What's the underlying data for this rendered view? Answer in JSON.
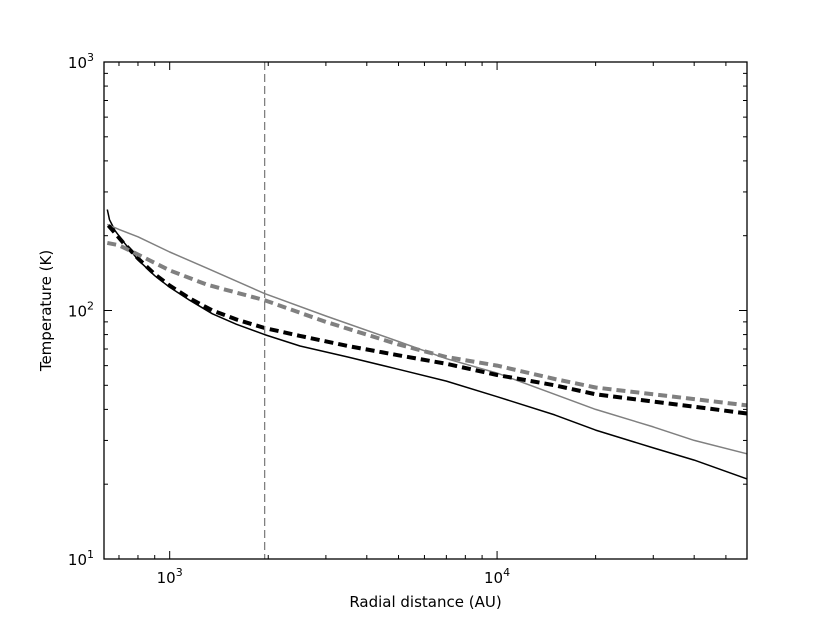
{
  "chart_data": {
    "type": "line",
    "title": "",
    "xlabel": "Radial distance (AU)",
    "ylabel": "Temperature (K)",
    "x_scale": "log",
    "y_scale": "log",
    "xlim": [
      630,
      58000
    ],
    "ylim": [
      10,
      1000
    ],
    "x_major_ticks": [
      {
        "value": 1000,
        "base": "10",
        "exp": "3"
      },
      {
        "value": 10000,
        "base": "10",
        "exp": "4"
      }
    ],
    "y_major_ticks": [
      {
        "value": 10,
        "base": "10",
        "exp": "1"
      },
      {
        "value": 100,
        "base": "10",
        "exp": "2"
      },
      {
        "value": 1000,
        "base": "10",
        "exp": "3"
      }
    ],
    "grid": false,
    "legend": "none",
    "vertical_reference_line": {
      "x": 1950,
      "style": "dashed",
      "color": "#808080"
    },
    "series": [
      {
        "style": "solid",
        "color": "#000000",
        "x": [
          645,
          655,
          680,
          720,
          800,
          900,
          1000,
          1150,
          1350,
          1600,
          1950,
          2500,
          3500,
          5000,
          7000,
          10000,
          15000,
          20000,
          30000,
          40000,
          58000
        ],
        "y": [
          255,
          232,
          210,
          190,
          160,
          138,
          124,
          110,
          97,
          88,
          80,
          72,
          65,
          58,
          52,
          45,
          38,
          33,
          28,
          25,
          21
        ]
      },
      {
        "style": "solid",
        "color": "#808080",
        "x": [
          645,
          700,
          800,
          1000,
          1300,
          1950,
          3000,
          5000,
          7000,
          10000,
          15000,
          20000,
          30000,
          40000,
          58000
        ],
        "y": [
          222,
          212,
          198,
          172,
          148,
          117,
          95,
          75,
          64,
          56,
          46,
          40,
          34,
          30,
          26.5
        ]
      },
      {
        "style": "dashed",
        "color": "#000000",
        "x": [
          650,
          680,
          720,
          800,
          900,
          1000,
          1150,
          1350,
          1600,
          1950,
          2500,
          3500,
          5000,
          7000,
          10000,
          15000,
          20000,
          30000,
          40000,
          58000
        ],
        "y": [
          220,
          205,
          188,
          162,
          140,
          126,
          112,
          100,
          92,
          85,
          79,
          72,
          66,
          61,
          55,
          50,
          46,
          43,
          41,
          38.5
        ]
      },
      {
        "style": "dashed",
        "color": "#808080",
        "x": [
          645,
          700,
          800,
          1000,
          1300,
          1950,
          3000,
          5000,
          7000,
          10000,
          15000,
          20000,
          30000,
          40000,
          58000
        ],
        "y": [
          187,
          183,
          168,
          145,
          127,
          110,
          90,
          73,
          65,
          60,
          53,
          49,
          46,
          44,
          41.5
        ]
      }
    ]
  }
}
